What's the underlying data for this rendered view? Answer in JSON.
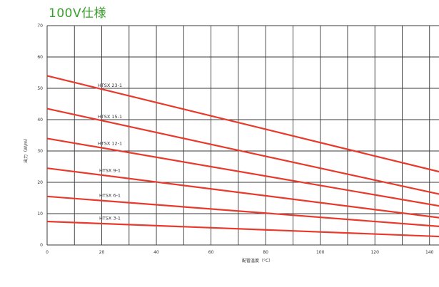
{
  "title": "100V仕様",
  "chart_data": {
    "type": "line",
    "xlabel": "配管温度（°C）",
    "ylabel": "出力（W/m）",
    "xlim": [
      0,
      150
    ],
    "ylim": [
      0,
      70
    ],
    "x_ticks": [
      "0",
      "20",
      "40",
      "60",
      "80",
      "100",
      "120",
      "140"
    ],
    "y_ticks": [
      "0",
      "10",
      "20",
      "30",
      "40",
      "50",
      "60",
      "70"
    ],
    "grid": true,
    "line_color": "#e8392a",
    "series": [
      {
        "name": "HTSX 23-1",
        "x": [
          0,
          150
        ],
        "y": [
          54,
          22
        ]
      },
      {
        "name": "HTSX 15-1",
        "x": [
          0,
          150
        ],
        "y": [
          43.5,
          15
        ]
      },
      {
        "name": "HTSX 12-1",
        "x": [
          0,
          150
        ],
        "y": [
          34,
          11.5
        ]
      },
      {
        "name": "HTSX 9-1",
        "x": [
          0,
          150
        ],
        "y": [
          24.5,
          8
        ]
      },
      {
        "name": "HTSX 6-1",
        "x": [
          0,
          150
        ],
        "y": [
          15.5,
          5.5
        ]
      },
      {
        "name": "HTSX 3-1",
        "x": [
          0,
          150
        ],
        "y": [
          7.5,
          2.5
        ]
      }
    ]
  }
}
